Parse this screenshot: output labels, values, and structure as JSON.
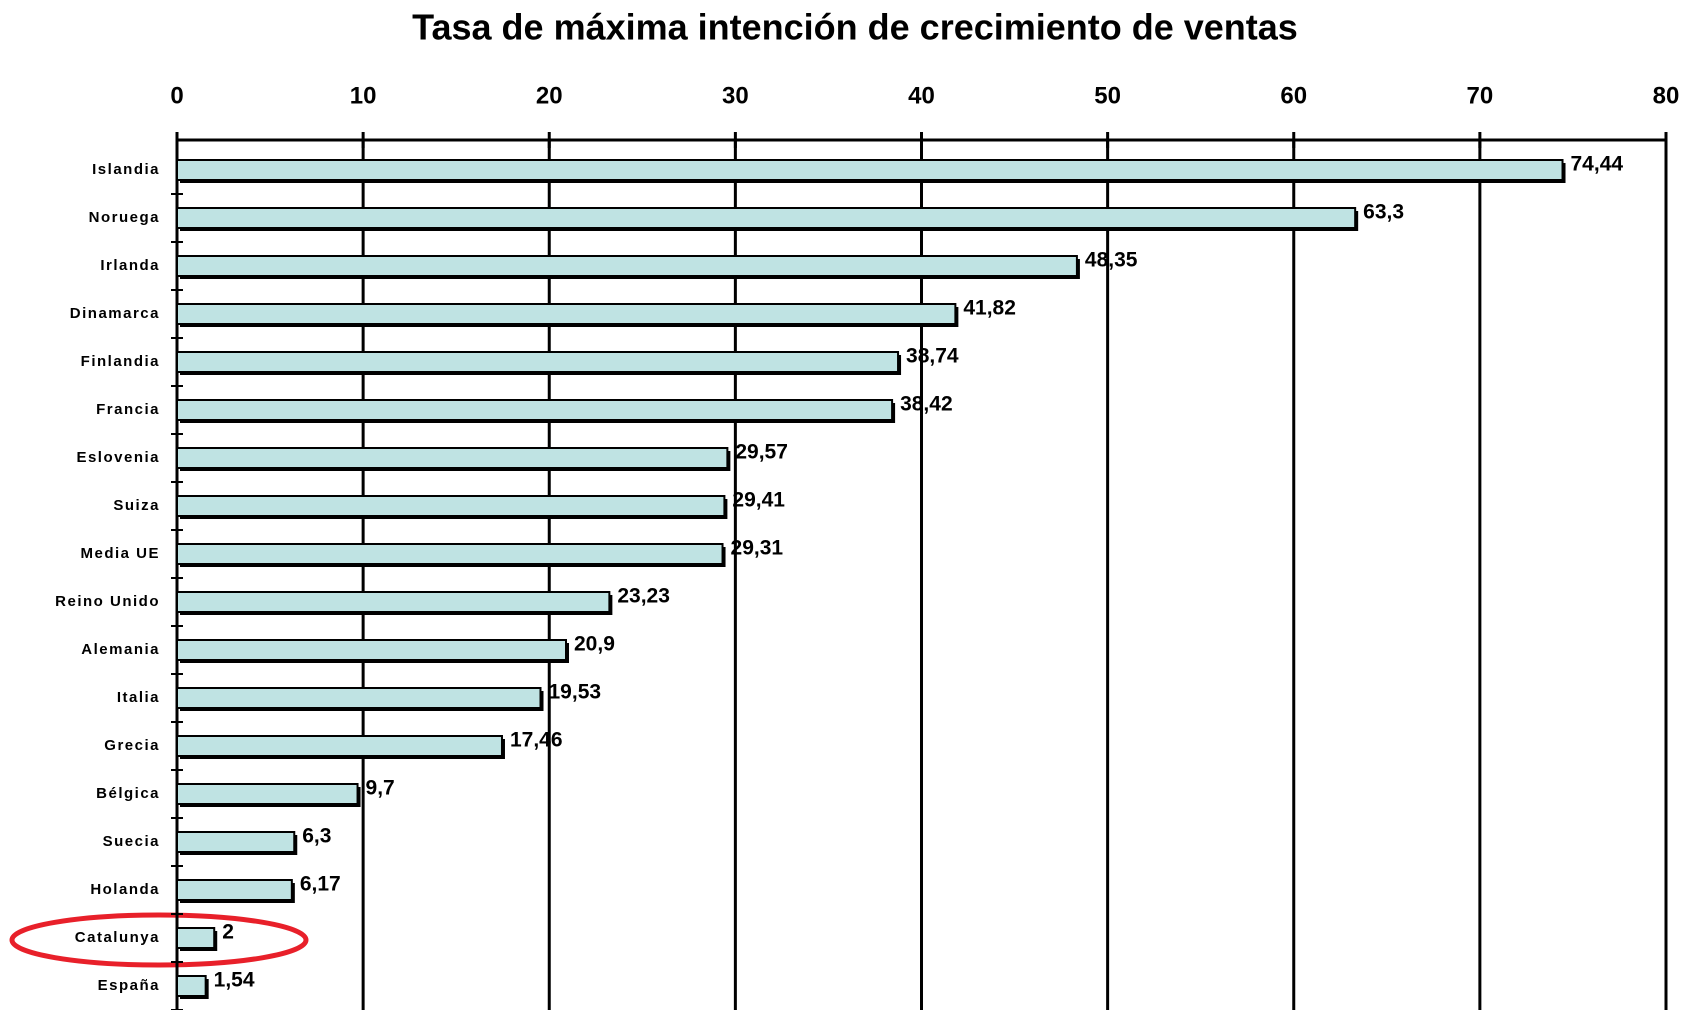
{
  "chart_data": {
    "type": "bar",
    "orientation": "horizontal",
    "title": "Tasa de máxima intención de crecimiento de ventas",
    "categories": [
      "Islandia",
      "Noruega",
      "Irlanda",
      "Dinamarca",
      "Finlandia",
      "Francia",
      "Eslovenia",
      "Suiza",
      "Media UE",
      "Reino Unido",
      "Alemania",
      "Italia",
      "Grecia",
      "Bélgica",
      "Suecia",
      "Holanda",
      "Catalunya",
      "España"
    ],
    "values": [
      74.44,
      63.3,
      48.35,
      41.82,
      38.74,
      38.42,
      29.57,
      29.41,
      29.31,
      23.23,
      20.9,
      19.53,
      17.46,
      9.7,
      6.3,
      6.17,
      2,
      1.54
    ],
    "value_labels": [
      "74,44",
      "63,3",
      "48,35",
      "41,82",
      "38,74",
      "38,42",
      "29,57",
      "29,41",
      "29,31",
      "23,23",
      "20,9",
      "19,53",
      "17,46",
      "9,7",
      "6,3",
      "6,17",
      "2",
      "1,54"
    ],
    "color": "#bfe3e3",
    "xlim": [
      0,
      80
    ],
    "xticks": [
      0,
      10,
      20,
      30,
      40,
      50,
      60,
      70,
      80
    ],
    "grid": true
  }
}
